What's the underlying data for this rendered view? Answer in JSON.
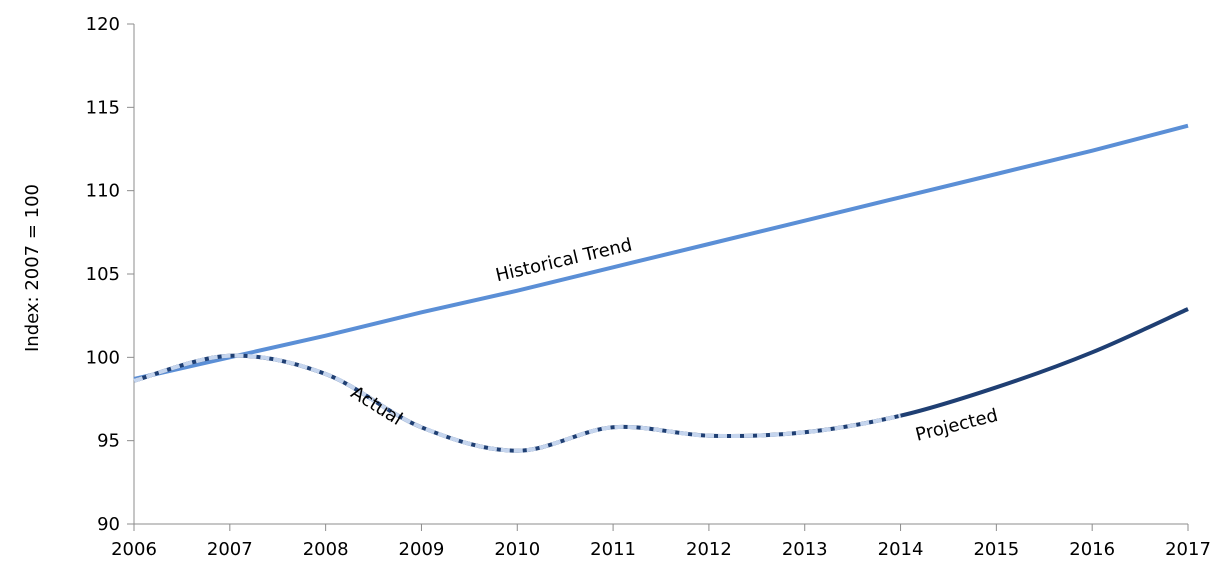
{
  "chart_data": {
    "type": "line",
    "ylabel": "Index: 2007 = 100",
    "xlabel": "",
    "xlim": [
      2006,
      2017
    ],
    "ylim": [
      90,
      120
    ],
    "x_ticks": [
      2006,
      2007,
      2008,
      2009,
      2010,
      2011,
      2012,
      2013,
      2014,
      2015,
      2016,
      2017
    ],
    "y_ticks": [
      90,
      95,
      100,
      105,
      110,
      115,
      120
    ],
    "grid": false,
    "legend": "none",
    "series": [
      {
        "name": "Historical Trend",
        "color": "#5b8fd6",
        "x": [
          2006,
          2007,
          2008,
          2009,
          2010,
          2011,
          2012,
          2013,
          2014,
          2015,
          2016,
          2017
        ],
        "values": [
          98.7,
          100.0,
          101.3,
          102.7,
          104.0,
          105.4,
          106.8,
          108.2,
          109.6,
          111.0,
          112.4,
          113.9
        ]
      },
      {
        "name": "Actual",
        "color": "#1f3f73",
        "dash_color": "#c5d5ee",
        "x": [
          2006,
          2007,
          2008,
          2009,
          2010,
          2011,
          2012,
          2013,
          2014
        ],
        "values": [
          98.6,
          100.1,
          99.0,
          95.8,
          94.4,
          95.8,
          95.3,
          95.5,
          96.5
        ]
      },
      {
        "name": "Projected",
        "color": "#1f3f73",
        "x": [
          2014,
          2015,
          2016,
          2017
        ],
        "values": [
          96.5,
          98.2,
          100.3,
          102.9
        ]
      }
    ],
    "annotations": [
      {
        "text": "Historical Trend",
        "x": 2010.5,
        "y": 105.5,
        "rotate": -13
      },
      {
        "text": "Actual",
        "x": 2008.5,
        "y": 96.8,
        "rotate": 32
      },
      {
        "text": "Projected",
        "x": 2014.6,
        "y": 95.6,
        "rotate": -14
      }
    ]
  }
}
